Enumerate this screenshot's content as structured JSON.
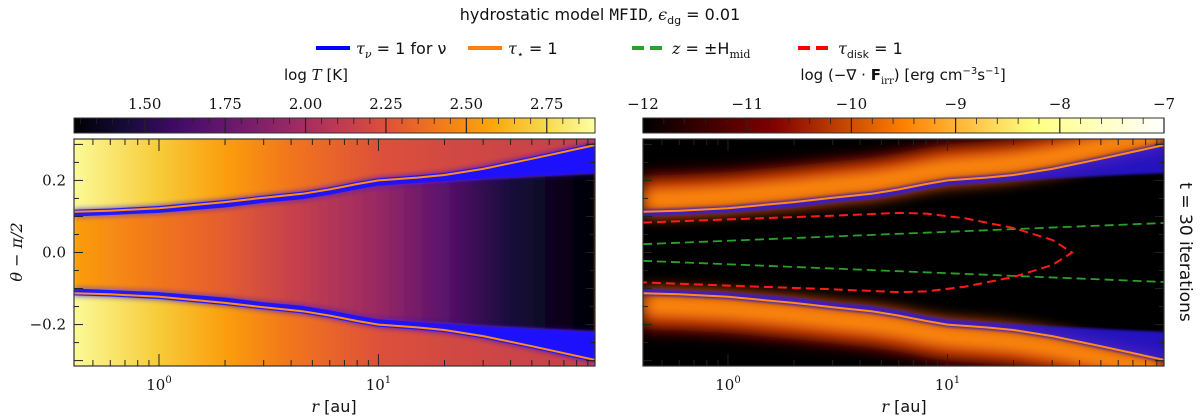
{
  "title": {
    "pre": "hydrostatic model ",
    "model": "MFID",
    "mid": ", ϵ",
    "sub": "dg",
    "post": " = 0.01"
  },
  "legend": [
    {
      "sym": "τ",
      "sub": "ν",
      "rest": " = 1 for ν",
      "color": "#0000ff",
      "style": "solid"
    },
    {
      "sym": "τ",
      "sub": "⋆",
      "rest": " = 1",
      "color": "#ff7f0e",
      "style": "solid"
    },
    {
      "sym": "z",
      "sub": "",
      "rest": " = ±H",
      "sub2": "mid",
      "color": "#2ca02c",
      "style": "dashed"
    },
    {
      "sym": "τ",
      "sub": "disk",
      "rest": " = 1",
      "color": "#ff0000",
      "style": "dashed"
    }
  ],
  "side_label": "t = 30 iterations",
  "chart_data": [
    {
      "type": "heatmap",
      "panel": "left",
      "quantity": "log T",
      "colorbar": {
        "label_pre": "log ",
        "label_var": "T",
        "label_post": " [K]",
        "colormap": "inferno",
        "range": [
          1.28,
          2.9
        ],
        "ticks": [
          "1.50",
          "1.75",
          "2.00",
          "2.25",
          "2.50",
          "2.75"
        ],
        "tick_values": [
          1.5,
          1.75,
          2.0,
          2.25,
          2.5,
          2.75
        ]
      },
      "xlabel": {
        "var": "r",
        "unit": " [au]"
      },
      "ylabel": "θ − π/2",
      "xscale": "log",
      "xlim": [
        0.41,
        97
      ],
      "ylim": [
        -0.315,
        0.315
      ],
      "xticks": [
        {
          "base": "10",
          "exp": "0",
          "value": 1
        },
        {
          "base": "10",
          "exp": "1",
          "value": 10
        }
      ],
      "yticks": [
        {
          "label": "0.2",
          "value": 0.2
        },
        {
          "label": "0.0",
          "value": 0.0
        },
        {
          "label": "−0.2",
          "value": -0.2
        }
      ],
      "profile_r": [
        0.41,
        1,
        2,
        4,
        10,
        20,
        40,
        97
      ],
      "logT_atmosphere": [
        2.88,
        2.7,
        2.55,
        2.4,
        2.25,
        2.2,
        2.17,
        2.15
      ],
      "logT_midplane": [
        2.55,
        2.4,
        2.3,
        2.15,
        1.95,
        1.7,
        1.45,
        1.28
      ]
    },
    {
      "type": "heatmap",
      "panel": "right",
      "quantity": "log(−∇·F_irr)",
      "colorbar": {
        "label_pre": "log (−∇ · ",
        "label_var": "F",
        "label_sub": "irr",
        "label_post": ") [erg cm",
        "sup1": "−3",
        "mid": "s",
        "sup2": "−1",
        "end": "]",
        "colormap": "afmhot",
        "range": [
          -12,
          -7
        ],
        "ticks": [
          "−12",
          "−11",
          "−10",
          "−9",
          "−8",
          "−7"
        ],
        "tick_values": [
          -12,
          -11,
          -10,
          -9,
          -8,
          -7
        ]
      },
      "xlabel": {
        "var": "r",
        "unit": " [au]"
      },
      "xscale": "log",
      "xlim": [
        0.41,
        97
      ],
      "ylim": [
        -0.315,
        0.315
      ],
      "xticks": [
        {
          "base": "10",
          "exp": "0",
          "value": 1
        },
        {
          "base": "10",
          "exp": "1",
          "value": 10
        }
      ]
    }
  ],
  "curves": {
    "r": [
      0.41,
      0.6,
      1,
      2,
      3,
      4.5,
      6,
      8,
      10,
      15,
      20,
      30,
      50,
      97
    ],
    "tau_star_upper": [
      0.113,
      0.116,
      0.123,
      0.14,
      0.152,
      0.163,
      0.175,
      0.19,
      0.2,
      0.208,
      0.215,
      0.232,
      0.26,
      0.298
    ],
    "tau_nu_inner_upper": [
      0.1,
      0.104,
      0.11,
      0.125,
      0.138,
      0.148,
      0.16,
      0.175,
      0.185,
      0.193,
      0.198,
      0.205,
      0.212,
      0.22
    ],
    "H_mid_r": [
      0.41,
      97
    ],
    "H_mid": [
      0.023,
      0.082
    ],
    "tau_disk_r": [
      0.41,
      1,
      3,
      6,
      8,
      12,
      20,
      30,
      37
    ],
    "tau_disk_upper": [
      0.083,
      0.092,
      0.102,
      0.11,
      0.108,
      0.095,
      0.068,
      0.035,
      0.0
    ]
  }
}
